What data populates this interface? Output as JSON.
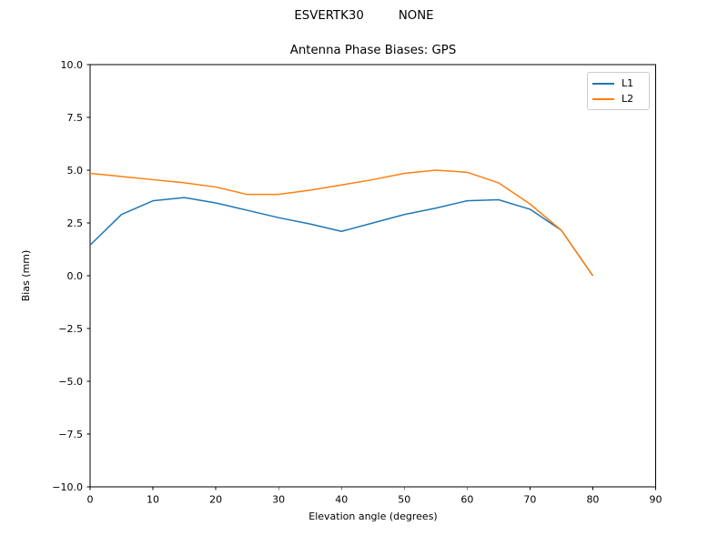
{
  "suptitle": "ESVERTK30         NONE",
  "chart_data": {
    "type": "line",
    "title": "Antenna Phase Biases: GPS",
    "xlabel": "Elevation angle (degrees)",
    "ylabel": "Bias (mm)",
    "xlim": [
      0,
      90
    ],
    "ylim": [
      -10,
      10
    ],
    "x_ticks": [
      0,
      10,
      20,
      30,
      40,
      50,
      60,
      70,
      80,
      90
    ],
    "x_tick_labels": [
      "0",
      "10",
      "20",
      "30",
      "40",
      "50",
      "60",
      "70",
      "80",
      "90"
    ],
    "y_ticks": [
      10,
      7.5,
      5,
      2.5,
      0,
      -2.5,
      -5,
      -7.5,
      -10
    ],
    "y_tick_labels": [
      "10.0",
      "7.5",
      "5.0",
      "2.5",
      "0.0",
      "−2.5",
      "−5.0",
      "−7.5",
      "−10.0"
    ],
    "grid": false,
    "legend_position": "upper right",
    "x": [
      0,
      5,
      10,
      15,
      20,
      25,
      30,
      35,
      40,
      45,
      50,
      55,
      60,
      65,
      70,
      75,
      80
    ],
    "series": [
      {
        "name": "L1",
        "color": "#1f77b4",
        "values": [
          1.45,
          2.9,
          3.55,
          3.7,
          3.45,
          3.1,
          2.75,
          2.45,
          2.1,
          2.5,
          2.9,
          3.2,
          3.55,
          3.6,
          3.15,
          2.15,
          0.0
        ]
      },
      {
        "name": "L2",
        "color": "#ff7f0e",
        "values": [
          4.85,
          4.7,
          4.55,
          4.4,
          4.2,
          3.85,
          3.85,
          4.05,
          4.3,
          4.55,
          4.85,
          5.0,
          4.9,
          4.4,
          3.4,
          2.15,
          0.0
        ]
      }
    ]
  }
}
